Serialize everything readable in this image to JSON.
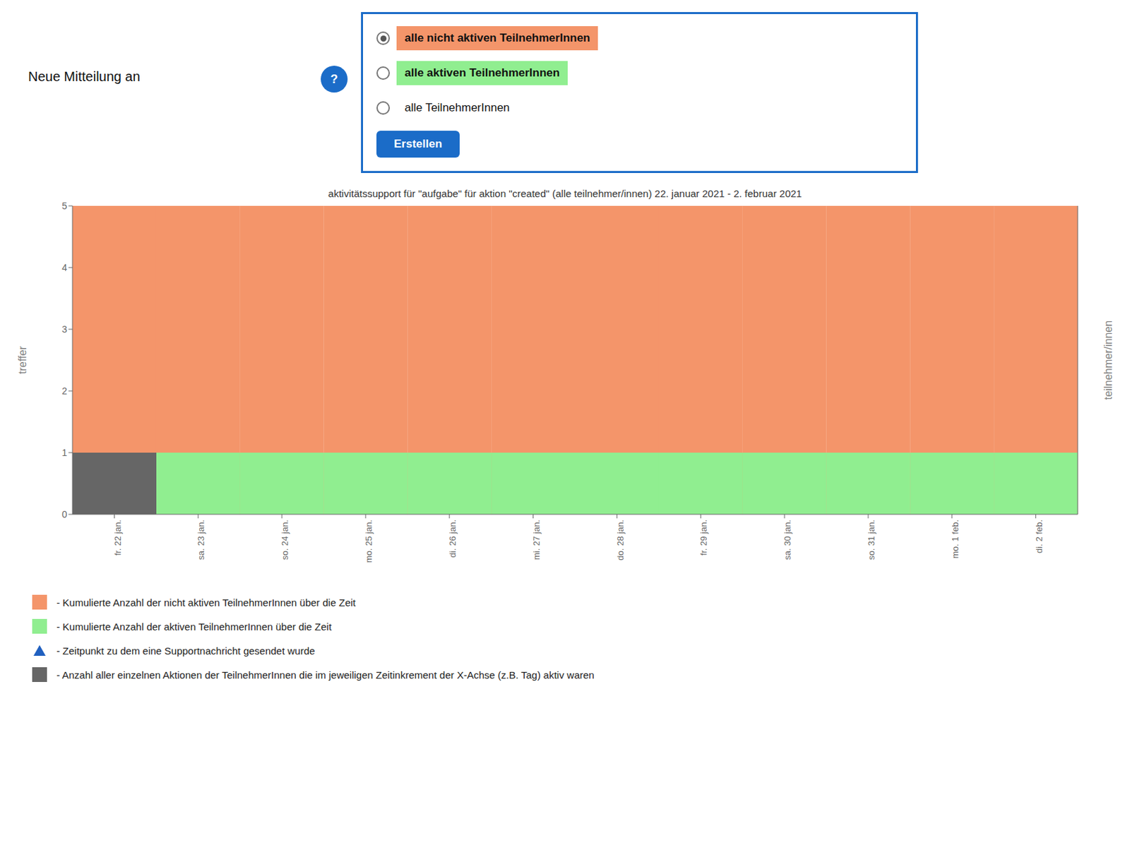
{
  "chart_data": {
    "type": "bar",
    "title": "aktivitätssupport für \"aufgabe\" für aktion \"created\"  (alle teilnehmer/innen) 22. januar 2021 - 2. februar 2021",
    "ylabel": "treffer",
    "y2label": "teilnehmer/innen",
    "categories": [
      "fr. 22 jan.",
      "sa. 23 jan.",
      "so. 24 jan.",
      "mo. 25 jan.",
      "di. 26 jan.",
      "mi. 27 jan.",
      "do. 28 jan.",
      "fr. 29 jan.",
      "sa. 30 jan.",
      "so. 31 jan.",
      "mo. 1 feb.",
      "di. 2 feb."
    ],
    "ylim": [
      0,
      5
    ],
    "yticks": [
      0,
      1,
      2,
      3,
      4,
      5
    ],
    "y2lim": [
      0,
      5
    ],
    "y2ticks": [],
    "grid": false,
    "legend": "bottom",
    "stacked": false,
    "series": [
      {
        "name": " - Kumulierte Anzahl der nicht aktiven TeilnehmerInnen über die Zeit",
        "type": "bar",
        "marker": "square",
        "color": "#F4956A",
        "values": [
          5,
          5,
          5,
          5,
          5,
          5,
          5,
          5,
          5,
          5,
          5,
          5
        ]
      },
      {
        "name": " - Kumulierte Anzahl der aktiven TeilnehmerInnen über die Zeit",
        "type": "bar",
        "marker": "square",
        "color": "#90EE90",
        "values": [
          0,
          1,
          1,
          1,
          1,
          1,
          1,
          1,
          1,
          1,
          1,
          1
        ]
      },
      {
        "name": " - Zeitpunkt zu dem eine Supportnachricht gesendet wurde",
        "type": "scatter",
        "marker": "triangle",
        "color": "#2060C0",
        "values": [
          null,
          null,
          null,
          null,
          null,
          null,
          null,
          null,
          null,
          null,
          null,
          null
        ]
      },
      {
        "name": " - Anzahl aller einzelnen Aktionen der TeilnehmerInnen die im jeweiligen Zeitinkrement der X-Achse (z.B. Tag) aktiv waren",
        "type": "bar",
        "marker": "square",
        "color": "#666666",
        "values": [
          1,
          0,
          0,
          0,
          0,
          0,
          0,
          0,
          0,
          0,
          0,
          0
        ]
      }
    ],
    "annotations": [
      {
        "text": "Neue Mitteilung an"
      },
      {
        "text": "?",
        "color": "#1B6CC8"
      },
      {
        "text": "alle nicht aktiven TeilnehmerInnen"
      },
      {
        "text": "alle aktiven TeilnehmerInnen"
      },
      {
        "text": "alle TeilnehmerInnen"
      },
      {
        "text": "Erstellen",
        "color": "#1B6CC8"
      }
    ]
  }
}
